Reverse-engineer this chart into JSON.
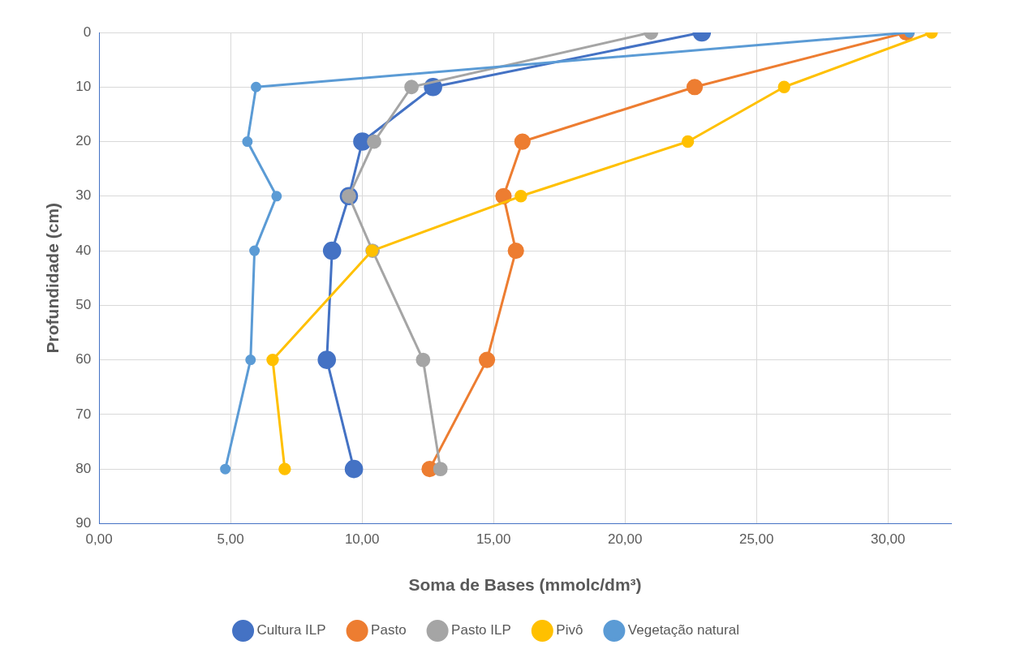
{
  "chart_data": {
    "type": "line",
    "xlabel": "Soma de Bases (mmolc/dm³)",
    "ylabel": "Profundidade (cm)",
    "xlim": [
      0,
      32.4
    ],
    "xticks": [
      {
        "value": 0,
        "label": "0,00"
      },
      {
        "value": 5,
        "label": "5,00"
      },
      {
        "value": 10,
        "label": "10,00"
      },
      {
        "value": 15,
        "label": "15,00"
      },
      {
        "value": 20,
        "label": "20,00"
      },
      {
        "value": 25,
        "label": "25,00"
      },
      {
        "value": 30,
        "label": "30,00"
      }
    ],
    "ylim": [
      90,
      0
    ],
    "yticks": [
      0,
      10,
      20,
      30,
      40,
      50,
      60,
      70,
      80,
      90
    ],
    "grid": true,
    "legend": "bottom",
    "marker": "circle",
    "line_style": "solid",
    "series": [
      {
        "name": "Cultura ILP",
        "color": "#4472c4",
        "x": [
          22.92,
          12.7,
          10.01,
          9.5,
          8.86,
          8.66,
          9.69
        ],
        "values": [
          0,
          10,
          20,
          30,
          40,
          60,
          80
        ]
      },
      {
        "name": "Pasto",
        "color": "#ed7d31",
        "x": [
          30.7,
          22.65,
          16.1,
          15.38,
          15.85,
          14.75,
          12.57
        ],
        "values": [
          0,
          10,
          20,
          30,
          40,
          60,
          80
        ]
      },
      {
        "name": "Pasto ILP",
        "color": "#a5a5a5",
        "x": [
          20.99,
          11.88,
          10.46,
          9.5,
          10.4,
          12.32,
          12.98
        ],
        "values": [
          0,
          10,
          20,
          30,
          40,
          60,
          80
        ]
      },
      {
        "name": "Pivô",
        "color": "#ffc000",
        "x": [
          31.66,
          26.05,
          22.39,
          16.04,
          10.38,
          6.6,
          7.06
        ],
        "values": [
          0,
          10,
          20,
          30,
          40,
          60,
          80
        ]
      },
      {
        "name": "Vegetação natural",
        "color": "#5b9bd5",
        "x": [
          30.82,
          5.97,
          5.64,
          6.75,
          5.91,
          5.76,
          4.8
        ],
        "values": [
          0,
          10,
          20,
          30,
          40,
          60,
          80
        ]
      }
    ]
  }
}
